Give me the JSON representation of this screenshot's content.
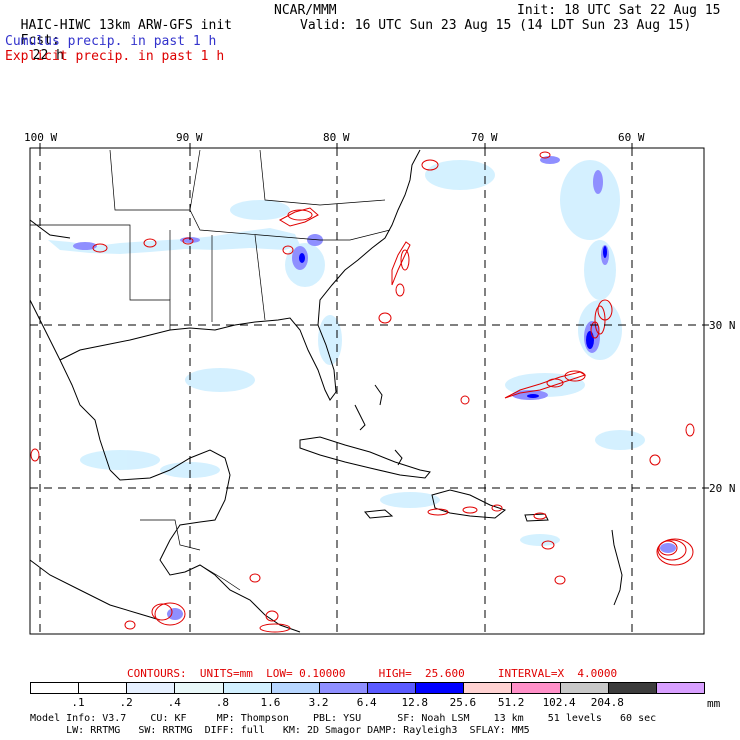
{
  "header": {
    "model_title": "HAIC-HIWC 13km ARW-GFS init",
    "org": "NCAR/MMM",
    "init": "Init: 18 UTC Sat 22 Aug 15",
    "fcst_label": "Fcst:",
    "fcst_value": "22 h",
    "valid": "Valid: 16 UTC Sun 23 Aug 15 (14 LDT Sun 23 Aug 15)",
    "cumulus_legend": "Cumulus precip. in past 1 h",
    "explicit_legend": "Explicit precip. in past 1 h"
  },
  "colors": {
    "cumulus_legend": "#3333cc",
    "explicit_legend": "#dd0000",
    "contours": "#e00000",
    "grid": "#000000",
    "coast": "#000000"
  },
  "axes": {
    "longitudes": [
      "100 W",
      "90 W",
      "80 W",
      "70 W",
      "60 W"
    ],
    "latitudes": [
      "30 N",
      "20 N"
    ]
  },
  "contour_info": {
    "text": "CONTOURS:  UNITS=mm  LOW= 0.10000     HIGH=  25.600     INTERVAL=X  4.0000"
  },
  "colorbar": {
    "units": "mm",
    "labels": [
      ".1",
      ".2",
      ".4",
      ".8",
      "1.6",
      "3.2",
      "6.4",
      "12.8",
      "25.6",
      "51.2",
      "102.4",
      "204.8"
    ],
    "colors": [
      "#ffffff",
      "#ffffff",
      "#e6f0ff",
      "#e9f8f9",
      "#d2f0ff",
      "#b7d6ff",
      "#8f8fff",
      "#5a5aff",
      "#0000ff",
      "#ffd2d2",
      "#ff90c8",
      "#c8c8c8",
      "#3c3c3c",
      "#d8a0ff"
    ]
  },
  "footer": {
    "line1": "Model Info: V3.7    CU: KF     MP: Thompson    PBL: YSU      SF: Noah LSM    13 km    51 levels   60 sec",
    "line2": "      LW: RRTMG   SW: RRTMG  DIFF: full   KM: 2D Smagor DAMP: Rayleigh3  SFLAY: MM5"
  }
}
